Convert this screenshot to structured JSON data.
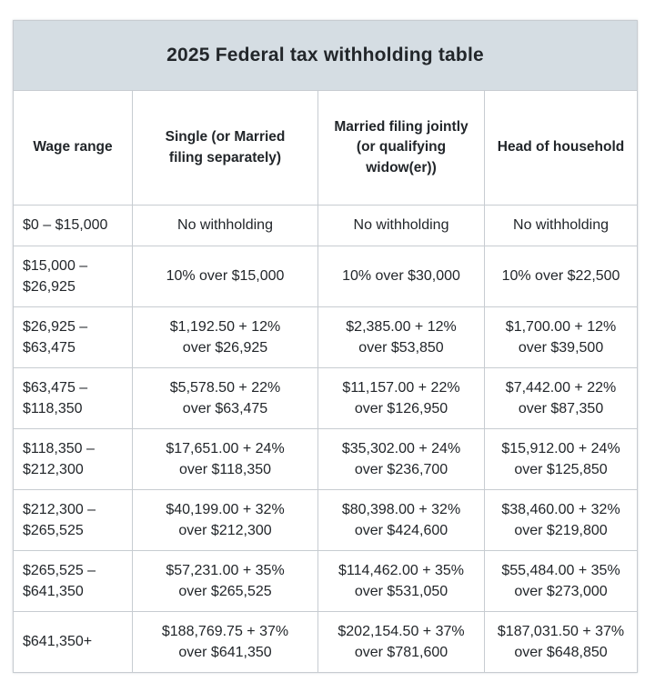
{
  "chart_data": {
    "type": "table",
    "title": "2025 Federal tax withholding table",
    "columns": [
      "Wage range",
      "Single (or Married\nfiling separately)",
      "Married filing jointly\n(or qualifying\nwidow(er))",
      "Head of household"
    ],
    "rows": [
      [
        "$0 – $15,000",
        "No withholding",
        "No withholding",
        "No withholding"
      ],
      [
        "$15,000 –\n$26,925",
        "10% over $15,000",
        "10% over $30,000",
        "10% over $22,500"
      ],
      [
        "$26,925 –\n$63,475",
        "$1,192.50 + 12%\nover $26,925",
        "$2,385.00 + 12%\nover $53,850",
        "$1,700.00 + 12%\nover $39,500"
      ],
      [
        "$63,475 –\n$118,350",
        "$5,578.50 + 22%\nover $63,475",
        "$11,157.00 + 22%\nover $126,950",
        "$7,442.00 + 22%\nover $87,350"
      ],
      [
        "$118,350 –\n$212,300",
        "$17,651.00 + 24%\nover $118,350",
        "$35,302.00 + 24%\nover $236,700",
        "$15,912.00 + 24%\nover $125,850"
      ],
      [
        "$212,300 –\n$265,525",
        "$40,199.00 + 32%\nover $212,300",
        "$80,398.00 + 32%\nover $424,600",
        "$38,460.00 + 32%\nover $219,800"
      ],
      [
        "$265,525 –\n$641,350",
        "$57,231.00 + 35%\nover $265,525",
        "$114,462.00 + 35%\nover $531,050",
        "$55,484.00 + 35%\nover $273,000"
      ],
      [
        "$641,350+",
        "$188,769.75 + 37%\nover $641,350",
        "$202,154.50 + 37%\nover $781,600",
        "$187,031.50 + 37%\nover $648,850"
      ]
    ],
    "layout": {
      "legend": "none",
      "grid": "all-borders",
      "title_position": "top-banner"
    },
    "colors": {
      "title_bg": "#d5dde3",
      "inner_border": "#c7ccd1",
      "outer_border": "#a9b0b6",
      "text": "#22262a",
      "cell_bg": "#ffffff"
    }
  }
}
